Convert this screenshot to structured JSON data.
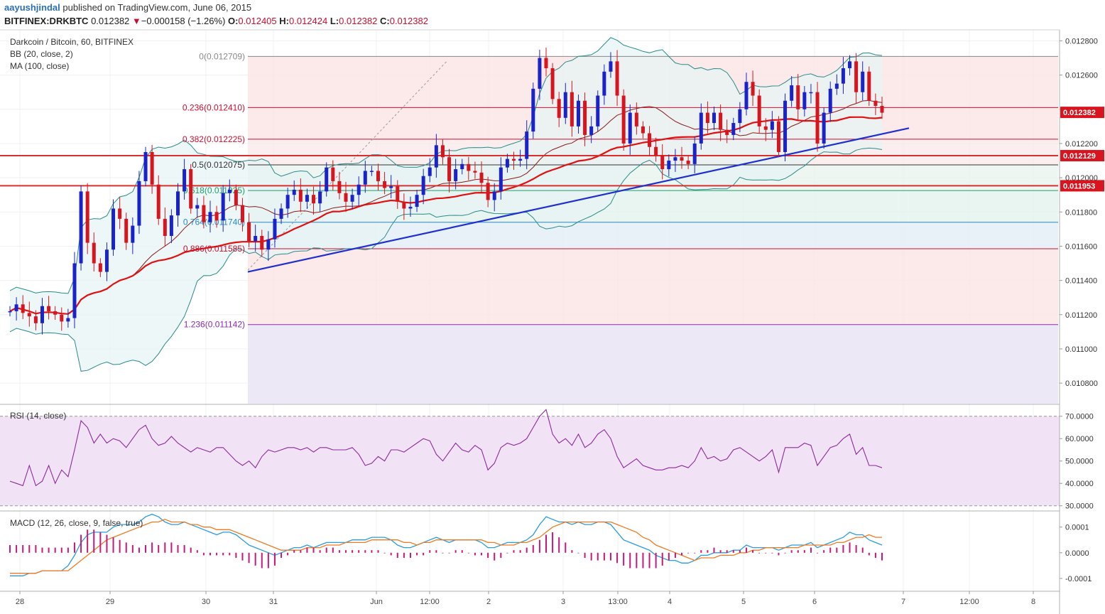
{
  "header": {
    "author": "aayushjindal",
    "published_text": "published on TradingView.com, June 06, 2015",
    "symbol": "BITFINEX:DRKBTC",
    "last": "0.012382",
    "change_arrow": "▼",
    "change": "−0.000158 (−1.26%)",
    "o_label": "O:",
    "o_value": "0.012405",
    "h_label": "H:",
    "h_value": "0.012424",
    "l_label": "L:",
    "l_value": "0.012382",
    "c_label": "C:",
    "c_value": "0.012382"
  },
  "legend": {
    "title": "Darkcoin / Bitcoin, 60, BITFINEX",
    "bb": "BB (20, close, 2)",
    "ma": "MA (100, close)",
    "rsi": "RSI (14, close)",
    "macd": "MACD (12, 26, close, 9, false, true)"
  },
  "colors": {
    "up_candle": "#1a23c9",
    "down_candle": "#d8141e",
    "bb_band": "#2b8a8a",
    "bb_basis": "#8b1a1a",
    "ma": "#e01010",
    "trendline": "#1f2fd0",
    "rsi_line": "#8b2a9b",
    "rsi_band": "#f1e2f6",
    "macd_line": "#2a9be0",
    "signal_line": "#f07a20",
    "histogram": "#c8187a",
    "price_tag": "#d8141e"
  },
  "chart_data": [
    {
      "type": "candlestick",
      "panel": "price",
      "title": "Darkcoin / Bitcoin, 60, BITFINEX",
      "ylim": [
        0.01068,
        0.01286
      ],
      "y_ticks": [
        "0.012800",
        "0.012600",
        "0.012400",
        "0.012200",
        "0.012000",
        "0.011800",
        "0.011600",
        "0.011400",
        "0.011200",
        "0.011000",
        "0.010800"
      ],
      "x_ticks": [
        "28",
        "29",
        "30",
        "31",
        "Jun",
        "12:00",
        "2",
        "3",
        "13:00",
        "4",
        "5",
        "6",
        "7",
        "12:00",
        "8"
      ],
      "fib_levels": [
        {
          "label": "0(0.012709)",
          "value": 0.012709
        },
        {
          "label": "0.236(0.012410)",
          "value": 0.01241
        },
        {
          "label": "0.382(0.012225)",
          "value": 0.012225
        },
        {
          "label": "0.5(0.012075)",
          "value": 0.012075
        },
        {
          "label": "0.618(0.011925)",
          "value": 0.011925
        },
        {
          "label": "0.764(0.011740)",
          "value": 0.01174
        },
        {
          "label": "0.886(0.011585)",
          "value": 0.011585
        },
        {
          "label": "1.236(0.011142)",
          "value": 0.011142
        }
      ],
      "horizontal_lines": [
        0.012129,
        0.011953
      ],
      "price_tags": [
        "0.012382",
        "0.012129",
        "0.011953"
      ],
      "last_price": 0.012382,
      "trendline": [
        [
          0.0,
          0.01145
        ],
        [
          1.0,
          0.01229
        ]
      ],
      "fib_anchor": [
        [
          0.0,
          0.01146
        ],
        [
          1.0,
          0.01268
        ]
      ],
      "closes": [
        0.01122,
        0.01126,
        0.01121,
        0.01119,
        0.01115,
        0.01125,
        0.01122,
        0.0112,
        0.01116,
        0.01118,
        0.0115,
        0.01192,
        0.01162,
        0.0115,
        0.01145,
        0.01158,
        0.01182,
        0.01176,
        0.01162,
        0.01172,
        0.01198,
        0.01215,
        0.01196,
        0.01176,
        0.01166,
        0.01178,
        0.01192,
        0.01205,
        0.01182,
        0.01184,
        0.01174,
        0.0118,
        0.01175,
        0.01191,
        0.01193,
        0.01184,
        0.01174,
        0.01163,
        0.01166,
        0.01158,
        0.01164,
        0.01176,
        0.01182,
        0.0119,
        0.01193,
        0.01186,
        0.0119,
        0.01185,
        0.01192,
        0.01206,
        0.01198,
        0.01191,
        0.01186,
        0.0119,
        0.01196,
        0.01204,
        0.01204,
        0.01198,
        0.01194,
        0.01195,
        0.01186,
        0.01182,
        0.01183,
        0.0119,
        0.01201,
        0.01206,
        0.01219,
        0.01212,
        0.01198,
        0.01205,
        0.01208,
        0.01204,
        0.01203,
        0.01197,
        0.01187,
        0.01192,
        0.01206,
        0.01211,
        0.0121,
        0.01211,
        0.01227,
        0.01252,
        0.0127,
        0.01264,
        0.01246,
        0.01235,
        0.0125,
        0.0123,
        0.01245,
        0.01225,
        0.0123,
        0.01248,
        0.01262,
        0.01268,
        0.01248,
        0.0122,
        0.01238,
        0.0123,
        0.01226,
        0.01218,
        0.01213,
        0.01205,
        0.0121,
        0.01212,
        0.0121,
        0.01208,
        0.0122,
        0.01238,
        0.01232,
        0.01238,
        0.01228,
        0.01225,
        0.01232,
        0.0124,
        0.01256,
        0.01248,
        0.0123,
        0.01228,
        0.01233,
        0.01215,
        0.01245,
        0.01254,
        0.0124,
        0.0125,
        0.0125,
        0.0122,
        0.01238,
        0.01252,
        0.01255,
        0.01264,
        0.01268,
        0.0125,
        0.01262,
        0.01245,
        0.01242,
        0.01238
      ]
    },
    {
      "type": "line",
      "panel": "rsi",
      "title": "RSI (14, close)",
      "ylim": [
        28,
        75
      ],
      "y_ticks": [
        "70.0000",
        "60.0000",
        "50.0000",
        "40.0000",
        "30.0000"
      ],
      "band": [
        30,
        70
      ],
      "values": [
        41,
        40,
        39,
        48,
        39,
        41,
        48,
        40,
        46,
        43,
        55,
        68,
        65,
        58,
        62,
        58,
        60,
        59,
        56,
        60,
        64,
        66,
        60,
        57,
        58,
        61,
        58,
        56,
        54,
        56,
        55,
        54,
        56,
        56,
        53,
        50,
        48,
        50,
        47,
        52,
        55,
        54,
        55,
        56,
        56,
        55,
        56,
        54,
        56,
        56,
        55,
        55,
        55,
        56,
        53,
        48,
        49,
        52,
        50,
        55,
        55,
        54,
        56,
        58,
        60,
        59,
        53,
        50,
        54,
        58,
        55,
        54,
        57,
        55,
        46,
        49,
        56,
        58,
        57,
        58,
        60,
        65,
        70,
        73,
        62,
        58,
        60,
        57,
        62,
        56,
        58,
        62,
        64,
        60,
        52,
        47,
        49,
        51,
        48,
        47,
        46,
        46,
        47,
        47,
        48,
        47,
        50,
        56,
        51,
        52,
        50,
        51,
        55,
        56,
        54,
        52,
        50,
        52,
        55,
        45,
        56,
        56,
        56,
        58,
        57,
        48,
        52,
        56,
        57,
        60,
        62,
        53,
        56,
        48,
        48,
        47
      ]
    },
    {
      "type": "line",
      "panel": "macd",
      "title": "MACD (12, 26, close, 9, false, true)",
      "ylim": [
        -0.00015,
        0.00016
      ],
      "y_ticks": [
        "0.0001",
        "0.0000",
        "-0.0001"
      ],
      "series": [
        {
          "name": "MACD",
          "values": [
            -9e-05,
            -9e-05,
            -9e-05,
            -8e-05,
            -8e-05,
            -7e-05,
            -7e-05,
            -7e-05,
            -7e-05,
            -5e-05,
            -1e-05,
            4e-05,
            7e-05,
            8e-05,
            8e-05,
            8e-05,
            0.0001,
            0.00011,
            0.00011,
            0.00011,
            0.00012,
            0.00014,
            0.00015,
            0.00014,
            0.00012,
            0.00011,
            0.00011,
            0.00012,
            0.00011,
            0.0001,
            9e-05,
            8e-05,
            7e-05,
            8e-05,
            8e-05,
            7e-05,
            5e-05,
            3e-05,
            2e-05,
            1e-05,
            0.0,
            -1e-05,
            0.0,
            1e-05,
            2e-05,
            2e-05,
            3e-05,
            2e-05,
            3e-05,
            4e-05,
            4e-05,
            4e-05,
            4e-05,
            5e-05,
            5e-05,
            5e-05,
            6e-05,
            6e-05,
            6e-05,
            5e-05,
            3e-05,
            2e-05,
            2e-05,
            3e-05,
            4e-05,
            5e-05,
            6e-05,
            5e-05,
            4e-05,
            5e-05,
            5e-05,
            5e-05,
            5e-05,
            4e-05,
            2e-05,
            2e-05,
            3e-05,
            4e-05,
            4e-05,
            4e-05,
            5e-05,
            7e-05,
            0.00011,
            0.00014,
            0.00013,
            0.00012,
            0.00012,
            0.00011,
            0.00012,
            0.00011,
            0.00011,
            0.00012,
            0.00012,
            0.00011,
            8e-05,
            5e-05,
            4e-05,
            3e-05,
            2e-05,
            1e-05,
            -1e-05,
            -2e-05,
            -3e-05,
            -3e-05,
            -4e-05,
            -4e-05,
            -3e-05,
            -1e-05,
            -1e-05,
            0.0,
            0.0,
            0.0,
            1e-05,
            1e-05,
            3e-05,
            2e-05,
            2e-05,
            2e-05,
            2e-05,
            1e-05,
            2e-05,
            3e-05,
            3e-05,
            3e-05,
            4e-05,
            2e-05,
            3e-05,
            4e-05,
            5e-05,
            6e-05,
            8e-05,
            7e-05,
            7e-05,
            5e-05,
            4e-05,
            3e-05
          ]
        },
        {
          "name": "Signal",
          "values": [
            -8e-05,
            -8e-05,
            -8e-05,
            -8e-05,
            -8e-05,
            -7e-05,
            -7e-05,
            -7e-05,
            -7e-05,
            -7e-05,
            -5e-05,
            -3e-05,
            -1e-05,
            1e-05,
            3e-05,
            5e-05,
            6e-05,
            7e-05,
            8e-05,
            9e-05,
            0.0001,
            0.00011,
            0.00012,
            0.00012,
            0.00013,
            0.00012,
            0.00012,
            0.00012,
            0.00011,
            0.00011,
            0.0001,
            0.0001,
            9e-05,
            9e-05,
            9e-05,
            8e-05,
            7e-05,
            6e-05,
            5e-05,
            4e-05,
            3e-05,
            2e-05,
            1e-05,
            1e-05,
            1e-05,
            1e-05,
            2e-05,
            2e-05,
            2e-05,
            3e-05,
            3e-05,
            3e-05,
            4e-05,
            4e-05,
            4e-05,
            4e-05,
            5e-05,
            5e-05,
            5e-05,
            5e-05,
            5e-05,
            4e-05,
            4e-05,
            3e-05,
            4e-05,
            4e-05,
            5e-05,
            5e-05,
            5e-05,
            5e-05,
            5e-05,
            5e-05,
            5e-05,
            5e-05,
            4e-05,
            4e-05,
            3e-05,
            3e-05,
            3e-05,
            4e-05,
            4e-05,
            5e-05,
            6e-05,
            8e-05,
            0.0001,
            0.00011,
            0.00012,
            0.00012,
            0.00012,
            0.00012,
            0.00012,
            0.00012,
            0.00012,
            0.00012,
            0.00011,
            0.0001,
            9e-05,
            8e-05,
            6e-05,
            5e-05,
            3e-05,
            2e-05,
            1e-05,
            0.0,
            -1e-05,
            -2e-05,
            -3e-05,
            -2e-05,
            -2e-05,
            -2e-05,
            -1e-05,
            -1e-05,
            -1e-05,
            0.0,
            0.0,
            1e-05,
            1e-05,
            2e-05,
            2e-05,
            2e-05,
            2e-05,
            2e-05,
            2e-05,
            3e-05,
            3e-05,
            3e-05,
            3e-05,
            3e-05,
            4e-05,
            4e-05,
            5e-05,
            6e-05,
            6e-05,
            7e-05,
            6e-05,
            6e-05
          ]
        },
        {
          "name": "Histogram",
          "values": [
            3e-05,
            3e-05,
            3e-05,
            3e-05,
            3e-05,
            2e-05,
            2e-05,
            2e-05,
            2e-05,
            2e-05,
            4e-05,
            7e-05,
            9e-05,
            9e-05,
            8e-05,
            7e-05,
            6e-05,
            5e-05,
            4e-05,
            3e-05,
            2e-05,
            3e-05,
            4e-05,
            3e-05,
            4e-05,
            4e-05,
            3e-05,
            3e-05,
            2e-05,
            1e-05,
            -1e-05,
            -1e-05,
            -1e-05,
            -1e-05,
            -1e-05,
            -2e-05,
            -3e-05,
            -4e-05,
            -5e-05,
            -6e-05,
            -6e-05,
            -5e-05,
            -2e-05,
            -1e-05,
            1e-05,
            1e-05,
            2e-05,
            2e-05,
            1e-05,
            2e-05,
            2e-05,
            1e-05,
            1e-05,
            1e-05,
            1e-05,
            1e-05,
            1e-05,
            1e-05,
            0.0,
            -1e-05,
            -2e-05,
            -2e-05,
            -2e-05,
            -1e-05,
            -1e-05,
            1e-05,
            1e-05,
            0.0,
            0.0,
            1e-05,
            1e-05,
            0.0,
            -1e-05,
            -1e-05,
            -2e-05,
            -3e-05,
            -2e-05,
            0.0,
            1e-05,
            1e-05,
            2e-05,
            3e-05,
            5e-05,
            7e-05,
            8e-05,
            6e-05,
            4e-05,
            1e-05,
            0.0,
            -2e-05,
            -3e-05,
            -3e-05,
            -3e-05,
            -3e-05,
            -4e-05,
            -5e-05,
            -6e-05,
            -6e-05,
            -6e-05,
            -6e-05,
            -6e-05,
            -5e-05,
            -3e-05,
            -2e-05,
            -1e-05,
            0.0,
            0.0,
            1e-05,
            1e-05,
            2e-05,
            1e-05,
            1e-05,
            1e-05,
            1e-05,
            2e-05,
            1e-05,
            0.0,
            0.0,
            0.0,
            -1e-05,
            0.0,
            1e-05,
            1e-05,
            1e-05,
            2e-05,
            0.0,
            1e-05,
            2e-05,
            2e-05,
            3e-05,
            4e-05,
            3e-05,
            2e-05,
            -1e-05,
            -2e-05,
            -3e-05
          ]
        }
      ]
    }
  ]
}
